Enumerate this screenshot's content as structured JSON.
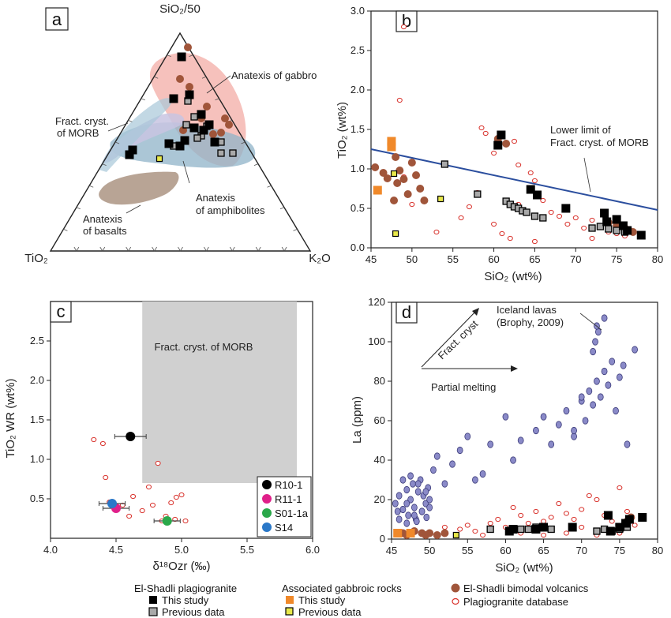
{
  "colors": {
    "study_black": "#000000",
    "previous_grey": "#a9a9a9",
    "gabbroic_study": "#f0892a",
    "gabbroic_prev": "#e8e84a",
    "volcanic_brown": "#a0553a",
    "database_red": "#d8302a",
    "iceland_purple": "#8a8ac8",
    "morb_line": "#2b4e9e",
    "gabbro_field": "#f4b6b0",
    "amphibolite_field": "#8fb3c8",
    "morb_field": "#c8c4e2",
    "basalt_field": "#b09a8a",
    "morb_box": "#d0d0d0"
  },
  "panel_a": {
    "letter": "a",
    "apex_top": "SiO₂/50",
    "apex_left": "TiO₂",
    "apex_right": "K₂O",
    "annotations": {
      "gabbro": "Anatexis of gabbro",
      "morb_line1": "Fract. cryst.",
      "morb_line2": "of MORB",
      "amph_line1": "Anatexis",
      "amph_line2": "of amphibolites",
      "basalt_line1": "Anatexis",
      "basalt_line2": "of basalts"
    }
  },
  "chart_data": [
    {
      "type": "scatter",
      "panel": "b",
      "xlabel": "SiO₂ (wt%)",
      "ylabel": "TiO₂ (wt%)",
      "xlim": [
        45,
        80
      ],
      "ylim": [
        0,
        3.0
      ],
      "xticks": [
        "45",
        "50",
        "55",
        "60",
        "65",
        "70",
        "75",
        "80"
      ],
      "yticks": [
        "0.0",
        "0.5",
        "1.0",
        "1.5",
        "2.0",
        "2.5",
        "3.0"
      ],
      "annotation_line1": "Lower limit of",
      "annotation_line2": "Fract. cryst. of MORB",
      "line": [
        [
          45,
          1.25
        ],
        [
          80,
          0.48
        ]
      ],
      "series": [
        {
          "name": "This study",
          "x": [
            60.5,
            60.9,
            64.5,
            65.3,
            68.8,
            73.5,
            73.8,
            75.0,
            75.8,
            76.3,
            78.0
          ],
          "y": [
            1.3,
            1.43,
            0.74,
            0.67,
            0.5,
            0.44,
            0.33,
            0.36,
            0.28,
            0.22,
            0.16
          ]
        },
        {
          "name": "Previous data",
          "x": [
            54.0,
            58.0,
            61.5,
            62.0,
            62.5,
            63.0,
            63.5,
            64.0,
            65.0,
            66.0,
            72.0,
            73.0,
            74.0,
            75.0,
            76.0
          ],
          "y": [
            1.06,
            0.68,
            0.59,
            0.55,
            0.52,
            0.5,
            0.47,
            0.45,
            0.4,
            0.38,
            0.25,
            0.27,
            0.24,
            0.22,
            0.2
          ]
        },
        {
          "name": "Associated gabbroic rocks - This study",
          "x": [
            45.8,
            47.5,
            47.5
          ],
          "y": [
            0.73,
            1.35,
            1.28
          ]
        },
        {
          "name": "Associated gabbroic rocks - Previous data",
          "x": [
            47.8,
            48.0,
            53.5
          ],
          "y": [
            0.94,
            0.18,
            0.62
          ]
        },
        {
          "name": "El-Shadli bimodal volcanics",
          "x": [
            45.5,
            46.5,
            47.0,
            47.8,
            48.2,
            48.5,
            49.0,
            49.5,
            50.0,
            50.5,
            51.0,
            51.5,
            48.0,
            60.5,
            61.5,
            74.0,
            75.0,
            76.0,
            76.5,
            77.0
          ],
          "y": [
            1.02,
            0.95,
            0.88,
            0.6,
            0.82,
            0.98,
            0.87,
            0.68,
            1.08,
            0.92,
            0.75,
            0.6,
            1.15,
            1.38,
            1.32,
            0.32,
            0.28,
            0.25,
            0.22,
            0.2
          ]
        },
        {
          "name": "Plagiogranite database",
          "x": [
            49.0,
            48.5,
            58.5,
            59.0,
            60.0,
            62.5,
            63.0,
            64.5,
            65.0,
            58.0,
            57.0,
            60.0,
            61.0,
            62.0,
            66.0,
            67.0,
            68.0,
            69.0,
            70.0,
            71.0,
            72.0,
            73.0,
            74.0,
            75.0,
            76.0,
            63.0,
            65.0,
            56.0,
            53.0,
            49.0,
            50.0,
            72.0
          ],
          "y": [
            2.8,
            1.87,
            1.52,
            1.45,
            1.2,
            1.35,
            1.05,
            0.95,
            0.85,
            0.7,
            0.52,
            0.3,
            0.18,
            0.12,
            0.6,
            0.45,
            0.4,
            0.3,
            0.38,
            0.25,
            0.35,
            0.28,
            0.2,
            0.18,
            0.15,
            0.55,
            0.08,
            0.38,
            0.2,
            0.9,
            0.55,
            0.12
          ]
        }
      ]
    },
    {
      "type": "scatter",
      "panel": "c",
      "xlabel": "δ¹⁸Ozr (‰)",
      "ylabel": "TiO₂ WR (wt%)",
      "xlim": [
        4.0,
        6.0
      ],
      "ylim": [
        0.0,
        3.0
      ],
      "xticks": [
        "4.0",
        "4.5",
        "5.0",
        "5.5",
        "6.0"
      ],
      "yticks": [
        "0.5",
        "1.0",
        "1.5",
        "2.0",
        "2.5"
      ],
      "box_label": "Fract. cryst. of MORB",
      "box": {
        "x": [
          4.7,
          5.88
        ],
        "y": [
          0.7,
          3.0
        ]
      },
      "samples": [
        {
          "name": "R10-1",
          "color": "#000000",
          "x": 4.61,
          "y": 1.29,
          "err": 0.12
        },
        {
          "name": "R11-1",
          "color": "#e0208a",
          "x": 4.5,
          "y": 0.38,
          "err": 0.1
        },
        {
          "name": "S01-1a",
          "color": "#2aa84a",
          "x": 4.89,
          "y": 0.22,
          "err": 0.1
        },
        {
          "name": "S14",
          "color": "#2a78c8",
          "x": 4.47,
          "y": 0.44,
          "err": 0.1
        }
      ],
      "database": {
        "x": [
          4.33,
          4.4,
          4.42,
          4.63,
          4.82,
          4.75,
          4.78,
          4.88,
          4.92,
          4.96,
          5.0,
          5.03,
          4.45,
          4.55,
          4.6,
          4.85,
          4.7,
          4.95,
          4.9
        ],
        "y": [
          1.25,
          1.2,
          0.77,
          0.53,
          0.95,
          0.65,
          0.42,
          0.28,
          0.45,
          0.52,
          0.55,
          0.22,
          0.46,
          0.42,
          0.28,
          0.22,
          0.35,
          0.24,
          0.2
        ]
      }
    },
    {
      "type": "scatter",
      "panel": "d",
      "xlabel": "SiO₂ (wt%)",
      "ylabel": "La (ppm)",
      "xlim": [
        45,
        80
      ],
      "ylim": [
        0,
        120
      ],
      "xticks": [
        "45",
        "50",
        "55",
        "60",
        "65",
        "70",
        "75",
        "80"
      ],
      "yticks": [
        "0",
        "20",
        "40",
        "60",
        "80",
        "100",
        "120"
      ],
      "annotation_line1": "Iceland lavas",
      "annotation_line2": "(Brophy, 2009)",
      "arrow_fract": "Fract. cryst",
      "arrow_partial": "Partial melting",
      "series": [
        {
          "name": "This study",
          "x": [
            60.5,
            61.0,
            64.0,
            65.0,
            68.8,
            73.5,
            73.8,
            75.0,
            75.8,
            76.3,
            78.0
          ],
          "y": [
            4,
            5,
            5,
            6,
            6,
            12,
            4,
            6,
            8,
            10,
            11
          ]
        },
        {
          "name": "Previous data",
          "x": [
            58.0,
            62.0,
            63.0,
            64.0,
            66.0,
            72.0,
            73.0,
            74.0,
            75.0,
            76.0
          ],
          "y": [
            5,
            5,
            5,
            6,
            5,
            4,
            5,
            4,
            5,
            6
          ]
        },
        {
          "name": "Associated gabbroic rocks - This study",
          "x": [
            45.8,
            47.5
          ],
          "y": [
            3,
            3
          ]
        },
        {
          "name": "Associated gabbroic rocks - Previous data",
          "x": [
            53.5
          ],
          "y": [
            2
          ]
        },
        {
          "name": "El-Shadli bimodal volcanics",
          "x": [
            46.5,
            47.0,
            48.0,
            49.0,
            49.5,
            50.0,
            51.0,
            52.0,
            76.0,
            76.5
          ],
          "y": [
            3,
            2,
            4,
            3,
            2,
            3,
            2,
            3,
            9,
            11
          ]
        },
        {
          "name": "Plagiogranite database",
          "x": [
            48.0,
            50.0,
            52.0,
            54.0,
            55.0,
            56.0,
            58.0,
            59.0,
            60.0,
            61.0,
            62.0,
            63.0,
            64.0,
            65.0,
            66.0,
            67.0,
            68.0,
            69.0,
            70.0,
            71.0,
            72.0,
            73.0,
            74.0,
            75.0,
            76.0,
            77.0,
            57.0,
            62.0,
            65.0,
            68.0,
            72.0,
            75.0,
            63.0,
            70.0
          ],
          "y": [
            4,
            3,
            6,
            5,
            7,
            4,
            8,
            10,
            6,
            16,
            12,
            8,
            14,
            9,
            11,
            18,
            13,
            10,
            15,
            22,
            20,
            12,
            9,
            26,
            14,
            7,
            2,
            3,
            2,
            3,
            2,
            3,
            5,
            6
          ]
        },
        {
          "name": "Iceland lavas",
          "x": [
            45.5,
            46.0,
            46.5,
            47.0,
            47.2,
            47.5,
            47.8,
            48.0,
            48.2,
            48.5,
            48.8,
            49.0,
            49.2,
            49.5,
            49.8,
            50.0,
            46.0,
            47.0,
            48.0,
            49.0,
            50.0,
            46.5,
            47.5,
            48.5,
            49.5,
            45.8,
            47.0,
            48.3,
            49.6,
            50.5,
            51.0,
            52.0,
            53.0,
            54.0,
            55.0,
            56.0,
            57.0,
            58.0,
            60.0,
            61.0,
            62.0,
            64.0,
            65.0,
            66.0,
            67.0,
            68.0,
            69.0,
            70.0,
            70.5,
            71.0,
            71.5,
            72.0,
            72.5,
            73.0,
            73.5,
            74.0,
            74.5,
            75.0,
            76.0,
            77.0,
            71.8,
            72.2,
            71.5,
            72.0,
            69.0,
            70.0,
            73.0,
            75.5
          ],
          "y": [
            18,
            22,
            15,
            25,
            12,
            20,
            28,
            16,
            10,
            24,
            30,
            14,
            22,
            18,
            26,
            20,
            10,
            8,
            12,
            14,
            16,
            30,
            32,
            28,
            24,
            14,
            18,
            9,
            11,
            35,
            42,
            28,
            38,
            45,
            52,
            30,
            33,
            48,
            62,
            40,
            50,
            55,
            62,
            48,
            58,
            65,
            52,
            70,
            60,
            75,
            68,
            80,
            72,
            85,
            78,
            90,
            65,
            82,
            48,
            96,
            100,
            105,
            95,
            108,
            55,
            72,
            112,
            88
          ]
        }
      ]
    }
  ],
  "legend_samples": [
    "R10-1",
    "R11-1",
    "S01-1a",
    "S14"
  ],
  "legend": {
    "group1_title": "El-Shadli plagiogranite",
    "group1_item1": "This study",
    "group1_item2": "Previous data",
    "group2_title": "Associated gabbroic rocks",
    "group2_item1": "This study",
    "group2_item2": "Previous data",
    "group3_item1": "El-Shadli bimodal volcanics",
    "group3_item2": "Plagiogranite database"
  },
  "panel_letters": {
    "a": "a",
    "b": "b",
    "c": "c",
    "d": "d"
  }
}
